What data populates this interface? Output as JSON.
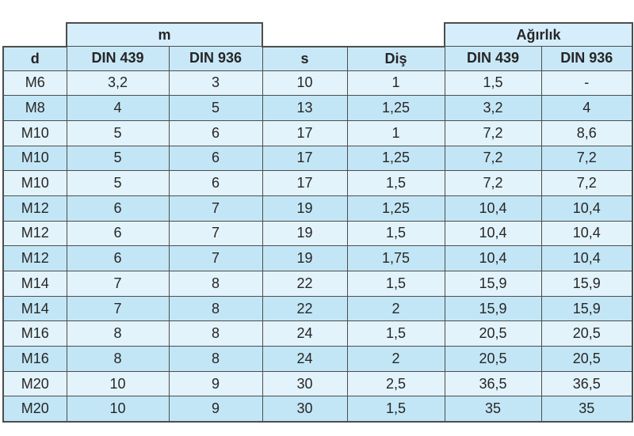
{
  "table": {
    "group_headers": [
      {
        "label": "",
        "span": 1
      },
      {
        "label": "m",
        "span": 2
      },
      {
        "label": "",
        "span": 1
      },
      {
        "label": "",
        "span": 1
      },
      {
        "label": "Ağırlık",
        "span": 2
      }
    ],
    "columns": [
      "d",
      "DIN 439",
      "DIN 936",
      "s",
      "Diş",
      "DIN 439",
      "DIN 936"
    ],
    "rows": [
      [
        "M6",
        "3,2",
        "3",
        "10",
        "1",
        "1,5",
        "-"
      ],
      [
        "M8",
        "4",
        "5",
        "13",
        "1,25",
        "3,2",
        "4"
      ],
      [
        "M10",
        "5",
        "6",
        "17",
        "1",
        "7,2",
        "8,6"
      ],
      [
        "M10",
        "5",
        "6",
        "17",
        "1,25",
        "7,2",
        "7,2"
      ],
      [
        "M10",
        "5",
        "6",
        "17",
        "1,5",
        "7,2",
        "7,2"
      ],
      [
        "M12",
        "6",
        "7",
        "19",
        "1,25",
        "10,4",
        "10,4"
      ],
      [
        "M12",
        "6",
        "7",
        "19",
        "1,5",
        "10,4",
        "10,4"
      ],
      [
        "M12",
        "6",
        "7",
        "19",
        "1,75",
        "10,4",
        "10,4"
      ],
      [
        "M14",
        "7",
        "8",
        "22",
        "1,5",
        "15,9",
        "15,9"
      ],
      [
        "M14",
        "7",
        "8",
        "22",
        "2",
        "15,9",
        "15,9"
      ],
      [
        "M16",
        "8",
        "8",
        "24",
        "1,5",
        "20,5",
        "20,5"
      ],
      [
        "M16",
        "8",
        "8",
        "24",
        "2",
        "20,5",
        "20,5"
      ],
      [
        "M20",
        "10",
        "9",
        "30",
        "2,5",
        "36,5",
        "36,5"
      ],
      [
        "M20",
        "10",
        "9",
        "30",
        "1,5",
        "35",
        "35"
      ]
    ],
    "colors": {
      "group_header_bg": "#d6eefb",
      "header_bg": "#c9e8f7",
      "row_light_bg": "#e2f3fb",
      "row_dark_bg": "#c3e6f6",
      "border": "#4d4d4d",
      "text": "#262626"
    }
  }
}
